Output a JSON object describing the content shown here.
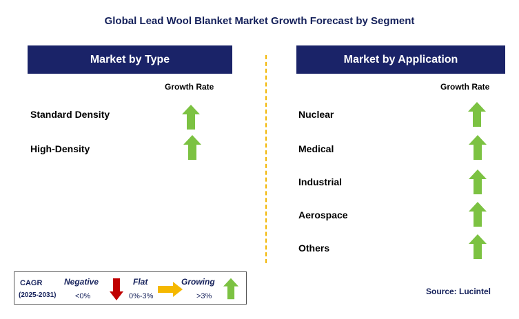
{
  "title": "Global Lead Wool Blanket Market Growth Forecast by Segment",
  "left_panel": {
    "header": "Market by Type",
    "column_label": "Growth Rate",
    "rows": [
      {
        "label": "Standard Density",
        "trend": "growing"
      },
      {
        "label": "High-Density",
        "trend": "growing"
      }
    ]
  },
  "right_panel": {
    "header": "Market by Application",
    "column_label": "Growth Rate",
    "rows": [
      {
        "label": "Nuclear",
        "trend": "growing"
      },
      {
        "label": "Medical",
        "trend": "growing"
      },
      {
        "label": "Industrial",
        "trend": "growing"
      },
      {
        "label": "Aerospace",
        "trend": "growing"
      },
      {
        "label": "Others",
        "trend": "growing"
      }
    ]
  },
  "legend": {
    "cagr_label": "CAGR",
    "years_label": "(2025-2031)",
    "negative_label": "Negative",
    "negative_value": "<0%",
    "flat_label": "Flat",
    "flat_value": "0%-3%",
    "growing_label": "Growing",
    "growing_value": ">3%"
  },
  "source": "Source: Lucintel",
  "colors": {
    "header_bg": "#1a2368",
    "growing_arrow": "#7cc242",
    "negative_arrow": "#c00000",
    "flat_arrow": "#f5b800",
    "divider": "#f2b705"
  }
}
